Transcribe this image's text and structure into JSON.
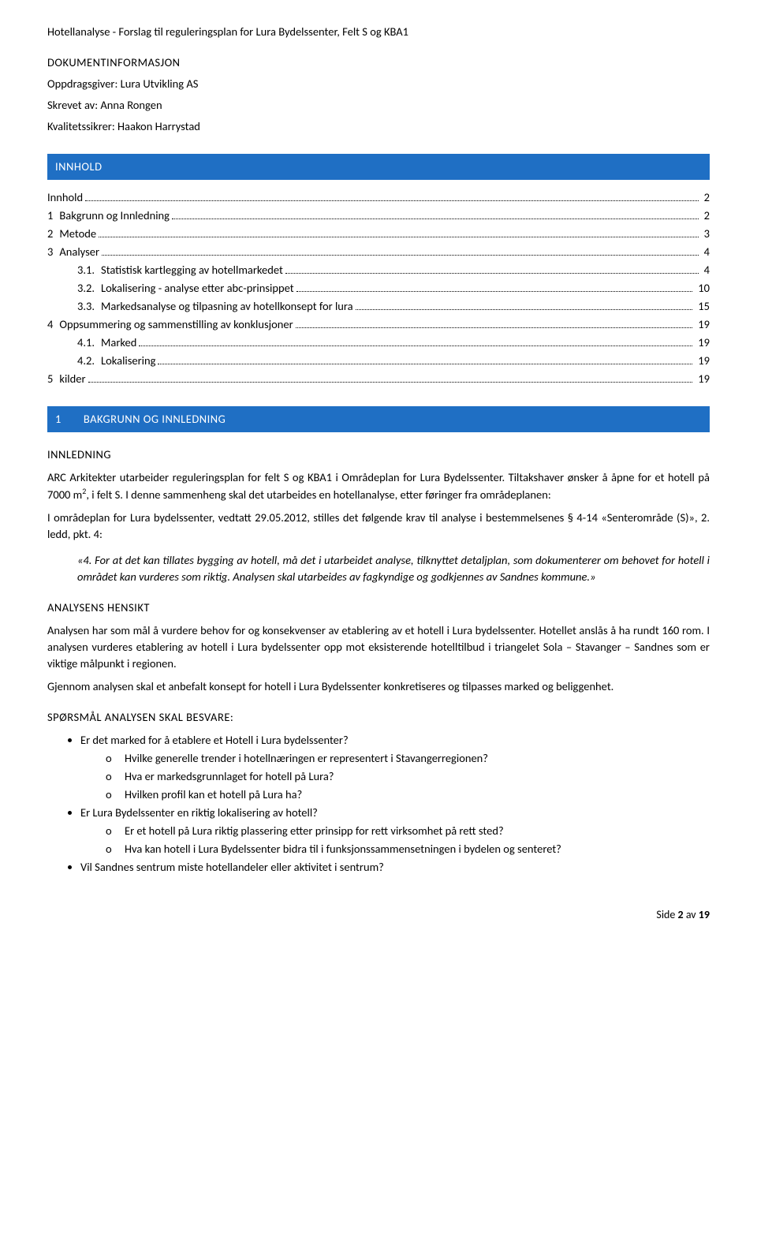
{
  "header": {
    "title": "Hotellanalyse - Forslag til reguleringsplan for Lura Bydelssenter, Felt S og KBA1"
  },
  "docinfo": {
    "heading": "DOKUMENTINFORMASJON",
    "client_label": "Oppdragsgiver: ",
    "client": "Lura Utvikling AS",
    "author_label": "Skrevet av: ",
    "author": "Anna Rongen",
    "qa_label": "Kvalitetssikrer: ",
    "qa": "Haakon Harrystad"
  },
  "innhold_banner": "INNHOLD",
  "toc": [
    {
      "level": 1,
      "num": "",
      "label": "Innhold",
      "page": "2"
    },
    {
      "level": 1,
      "num": "1",
      "label": "Bakgrunn og Innledning",
      "page": "2"
    },
    {
      "level": 1,
      "num": "2",
      "label": "Metode",
      "page": "3"
    },
    {
      "level": 1,
      "num": "3",
      "label": "Analyser",
      "page": "4"
    },
    {
      "level": 2,
      "num": "3.1.",
      "label": "Statistisk kartlegging av hotellmarkedet",
      "page": "4"
    },
    {
      "level": 2,
      "num": "3.2.",
      "label": "Lokalisering - analyse etter abc-prinsippet",
      "page": "10"
    },
    {
      "level": 2,
      "num": "3.3.",
      "label": "Markedsanalyse og tilpasning av hotellkonsept for lura",
      "page": "15"
    },
    {
      "level": 1,
      "num": "4",
      "label": "Oppsummering og sammenstilling av konklusjoner",
      "page": "19"
    },
    {
      "level": 2,
      "num": "4.1.",
      "label": "Marked",
      "page": "19"
    },
    {
      "level": 2,
      "num": "4.2.",
      "label": "Lokalisering",
      "page": "19"
    },
    {
      "level": 1,
      "num": "5",
      "label": "kilder",
      "page": "19"
    }
  ],
  "section1": {
    "num": "1",
    "title": "BAKGRUNN OG INNLEDNING",
    "sub_innledning": "INNLEDNING",
    "p1a": "ARC Arkitekter utarbeider reguleringsplan for felt S og KBA1 i Områdeplan for Lura Bydelssenter. Tiltakshaver ønsker å åpne for et hotell på 7000 m",
    "p1_sup": "2",
    "p1b": ", i felt S. I denne sammenheng skal det utarbeides en hotellanalyse, etter føringer fra områdeplanen:",
    "p2": "I områdeplan for Lura bydelssenter, vedtatt 29.05.2012, stilles det følgende krav til analyse i bestemmelsenes § 4-14 «Senterområde (S)», 2. ledd, pkt. 4:",
    "quote_num": "«4. ",
    "quote_text": "For at det kan tillates bygging av hotell, må det i utarbeidet analyse, tilknyttet detaljplan, som dokumenterer om behovet for hotell i området kan vurderes som riktig. Analysen skal utarbeides av fagkyndige og godkjennes av Sandnes kommune.»",
    "sub_hensikt": "ANALYSENS HENSIKT",
    "phensikt1": "Analysen har som mål å vurdere behov for og konsekvenser av etablering av et hotell i Lura bydelssenter. Hotellet anslås å ha rundt 160 rom. I analysen vurderes etablering av hotell i Lura bydelssenter opp mot eksisterende hotelltilbud i triangelet Sola – Stavanger – Sandnes som er viktige målpunkt i regionen.",
    "phensikt2": "Gjennom analysen skal et anbefalt konsept for hotell i Lura Bydelssenter konkretiseres og tilpasses marked og beliggenhet.",
    "sub_sporsmal": "SPØRSMÅL ANALYSEN SKAL BESVARE:",
    "q1": "Er det marked for å etablere et Hotell i Lura bydelssenter?",
    "q1a": "Hvilke generelle trender i hotellnæringen er representert i Stavangerregionen?",
    "q1b": "Hva er markedsgrunnlaget for hotell på Lura?",
    "q1c": "Hvilken profil kan et hotell på Lura ha?",
    "q2": "Er Lura Bydelssenter en riktig lokalisering av hotell?",
    "q2a": "Er et hotell på Lura riktig plassering etter prinsipp for rett virksomhet på rett sted?",
    "q2b": "Hva kan hotell i Lura Bydelssenter bidra til i funksjonssammensetningen i bydelen og senteret?",
    "q3": "Vil Sandnes sentrum miste hotellandeler eller aktivitet i sentrum?"
  },
  "footer": {
    "prefix": "Side ",
    "current": "2",
    "of": " av ",
    "total": "19"
  },
  "colors": {
    "banner_bg": "#1f6fc4",
    "banner_fg": "#ffffff",
    "text": "#000000",
    "page_bg": "#ffffff"
  }
}
